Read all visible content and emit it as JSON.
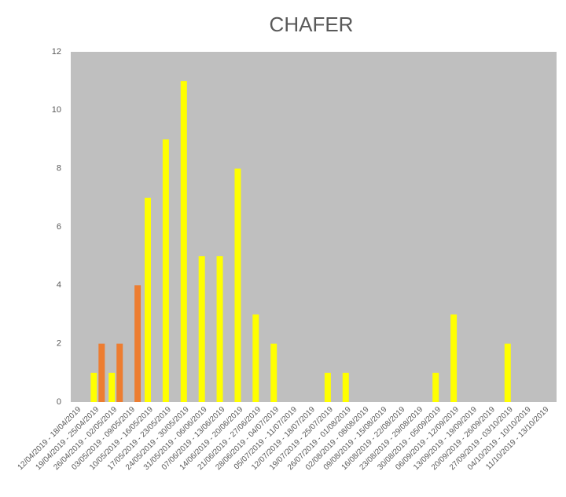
{
  "chart_data": {
    "type": "bar",
    "title": "CHAFER",
    "categories": [
      "12/04/2019 - 18/04/2019",
      "19/04/2019 - 25/04/2019",
      "26/04/2019 - 02/05/2019",
      "03/05/2019 - 09/05/2019",
      "10/05/2019 - 16/05/2019",
      "17/05/2019 - 23/05/2019",
      "24/05/2019 - 30/05/2019",
      "31/05/2019 - 06/06/2019",
      "07/06/2019 - 13/06/2019",
      "14/06/2019 - 20/06/2019",
      "21/06/2019 - 27/06/2019",
      "28/06/2019 - 04/07/2019",
      "05/07/2019 - 11/07/2019",
      "12/07/2019 - 18/07/2019",
      "19/07/2019 - 25/07/2019",
      "26/07/2019 - 01/08/2019",
      "02/08/2019 - 08/08/2019",
      "09/08/2019 - 15/08/2019",
      "16/08/2019 - 22/08/2019",
      "23/08/2019 - 29/08/2019",
      "30/08/2019 - 05/09/2019",
      "06/09/2019 - 12/09/2019",
      "13/09/2019 - 19/09/2019",
      "20/09/2019 - 26/09/2019",
      "27/09/2019 - 03/10/2019",
      "04/10/2019 - 10/10/2019",
      "11/10/2019 - 13/10/2019"
    ],
    "series": [
      {
        "color": "#ffff00",
        "values": [
          0,
          1,
          1,
          0,
          7,
          9,
          11,
          5,
          5,
          8,
          3,
          2,
          0,
          0,
          1,
          1,
          0,
          0,
          0,
          0,
          1,
          3,
          0,
          0,
          2,
          0,
          0
        ]
      },
      {
        "color": "#ed7d31",
        "values": [
          0,
          2,
          2,
          4,
          0,
          0,
          0,
          0,
          0,
          0,
          0,
          0,
          0,
          0,
          0,
          0,
          0,
          0,
          0,
          0,
          0,
          0,
          0,
          0,
          0,
          0,
          0
        ]
      }
    ],
    "ylim": [
      0,
      12
    ],
    "yticks": [
      0,
      2,
      4,
      6,
      8,
      10,
      12
    ],
    "grid": false,
    "background": "#bfbfbf"
  }
}
